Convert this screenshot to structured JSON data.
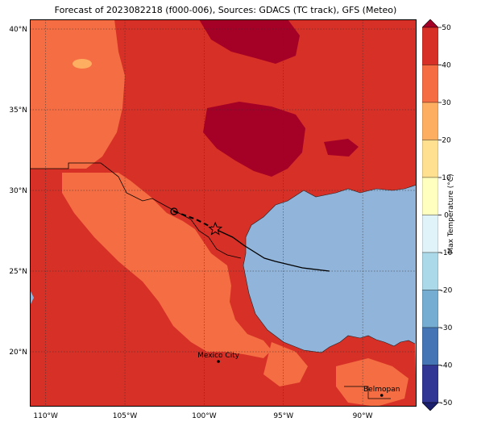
{
  "title": "Forecast of 2023082218 (f000-006), Sources: GDACS (TC track), GFS (Meteo)",
  "map": {
    "lon_range": [
      -111,
      -86.6
    ],
    "lat_range": [
      16.6,
      40.6
    ],
    "lat_ticks": [
      {
        "value": 40,
        "label": "40°N"
      },
      {
        "value": 35,
        "label": "35°N"
      },
      {
        "value": 30,
        "label": "30°N"
      },
      {
        "value": 25,
        "label": "25°N"
      },
      {
        "value": 20,
        "label": "20°N"
      }
    ],
    "lon_ticks": [
      {
        "value": -110,
        "label": "110°W"
      },
      {
        "value": -105,
        "label": "105°W"
      },
      {
        "value": -100,
        "label": "100°W"
      },
      {
        "value": -95,
        "label": "95°W"
      },
      {
        "value": -90,
        "label": "90°W"
      }
    ],
    "cities": [
      {
        "name": "Mexico City",
        "lon": -99.1,
        "lat": 19.4
      },
      {
        "name": "Belmopan",
        "lon": -88.8,
        "lat": 17.3
      }
    ],
    "storm_track": {
      "observed": [
        [
          -92.1,
          25.0
        ],
        [
          -93.8,
          25.2
        ],
        [
          -95.5,
          25.6
        ],
        [
          -96.2,
          25.8
        ],
        [
          -97.5,
          26.6
        ],
        [
          -98.2,
          27.1
        ],
        [
          -99.3,
          27.6
        ]
      ],
      "forecast": [
        [
          -99.3,
          27.6
        ],
        [
          -100.5,
          28.2
        ],
        [
          -101.9,
          28.7
        ]
      ],
      "current_position": [
        -99.3,
        27.6
      ],
      "forecast_position": [
        -101.9,
        28.7
      ]
    },
    "colors": {
      "ocean": "#91b4da",
      "land_30_40": "#d73027",
      "land_20_30": "#f46d43",
      "land_10_20": "#fdae61",
      "land_40_50": "#a50026"
    }
  },
  "colorbar": {
    "label": "Max Temperature (°C)",
    "ticks": [
      50,
      40,
      30,
      20,
      10,
      0,
      -10,
      -20,
      -30,
      -40,
      -50
    ],
    "bands": [
      "#a50026",
      "#d73027",
      "#f46d43",
      "#fdae61",
      "#fee090",
      "#ffffbf",
      "#e0f3f8",
      "#abd9e9",
      "#74add1",
      "#4575b4",
      "#313695",
      "#1a1f6e"
    ]
  }
}
